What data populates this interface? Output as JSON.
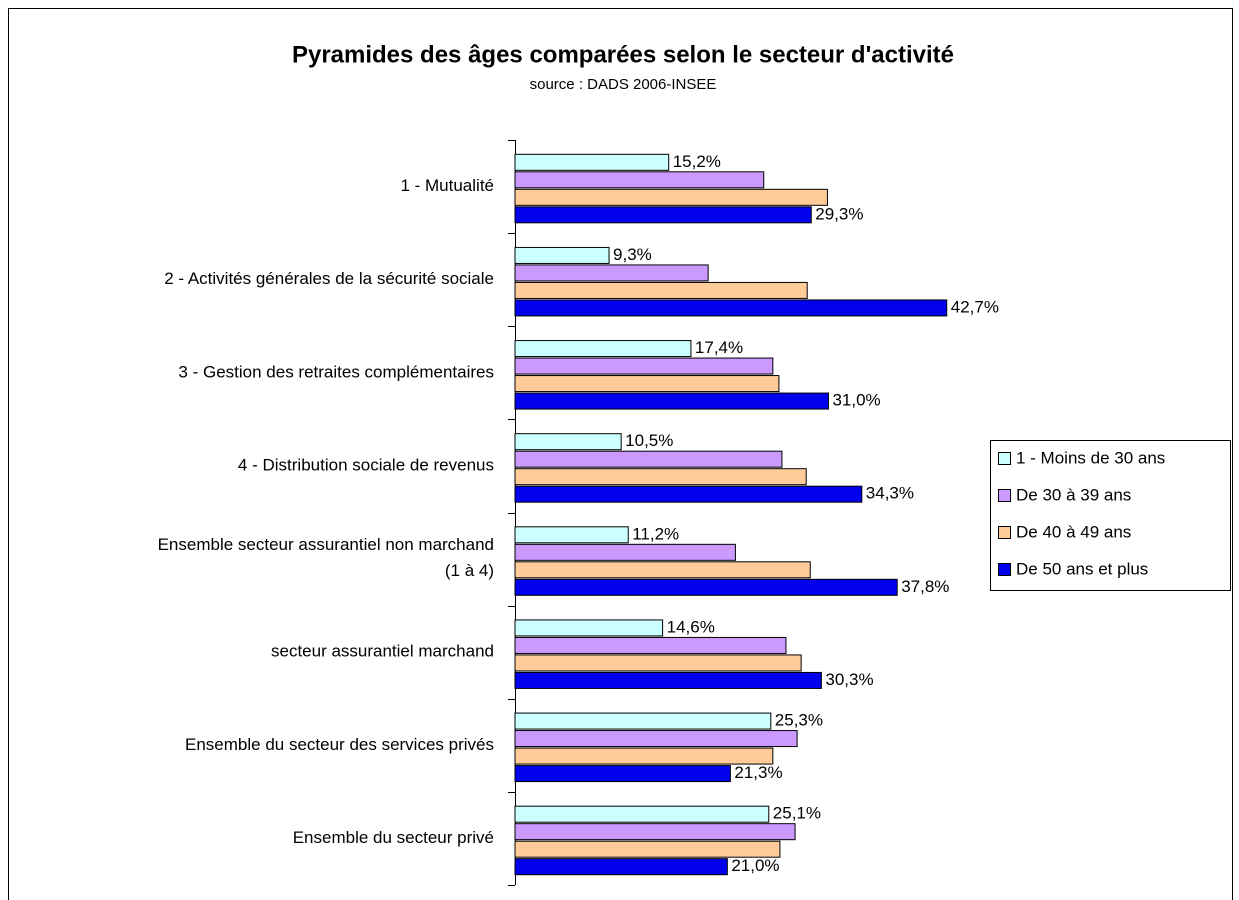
{
  "chart_data": {
    "type": "hbar",
    "title": "Pyramides des âges comparées selon le secteur d'activité",
    "subtitle": "source : DADS 2006-INSEE",
    "categories": [
      "1 - Mutualité",
      "2 - Activités générales de la sécurité sociale",
      "3 - Gestion des retraites complémentaires",
      "4 - Distribution sociale de revenus",
      "Ensemble secteur assurantiel non marchand\n(1 à 4)",
      "secteur assurantiel marchand",
      "Ensemble du secteur des services privés",
      "Ensemble du secteur privé"
    ],
    "xlim": [
      0,
      45
    ],
    "legend": "right",
    "series": [
      {
        "name": "1 - Moins de 30 ans",
        "color": "#ccffff",
        "values": [
          15.2,
          9.3,
          17.4,
          10.5,
          11.2,
          14.6,
          25.3,
          25.1
        ],
        "value_labels": [
          "15,2%",
          "9,3%",
          "17,4%",
          "10,5%",
          "11,2%",
          "14,6%",
          "25,3%",
          "25,1%"
        ]
      },
      {
        "name": "De 30 à 39 ans",
        "color": "#cc99ff",
        "values": [
          24.6,
          19.1,
          25.5,
          26.4,
          21.8,
          26.8,
          27.9,
          27.7
        ]
      },
      {
        "name": "De 40 à 49 ans",
        "color": "#ffcc99",
        "values": [
          30.9,
          28.9,
          26.1,
          28.8,
          29.2,
          28.3,
          25.5,
          26.2
        ]
      },
      {
        "name": "De 50 ans et plus",
        "color": "#0000ee",
        "values": [
          29.3,
          42.7,
          31.0,
          34.3,
          37.8,
          30.3,
          21.3,
          21.0
        ],
        "value_labels": [
          "29,3%",
          "42,7%",
          "31,0%",
          "34,3%",
          "37,8%",
          "30,3%",
          "21,3%",
          "21,0%"
        ]
      }
    ]
  }
}
